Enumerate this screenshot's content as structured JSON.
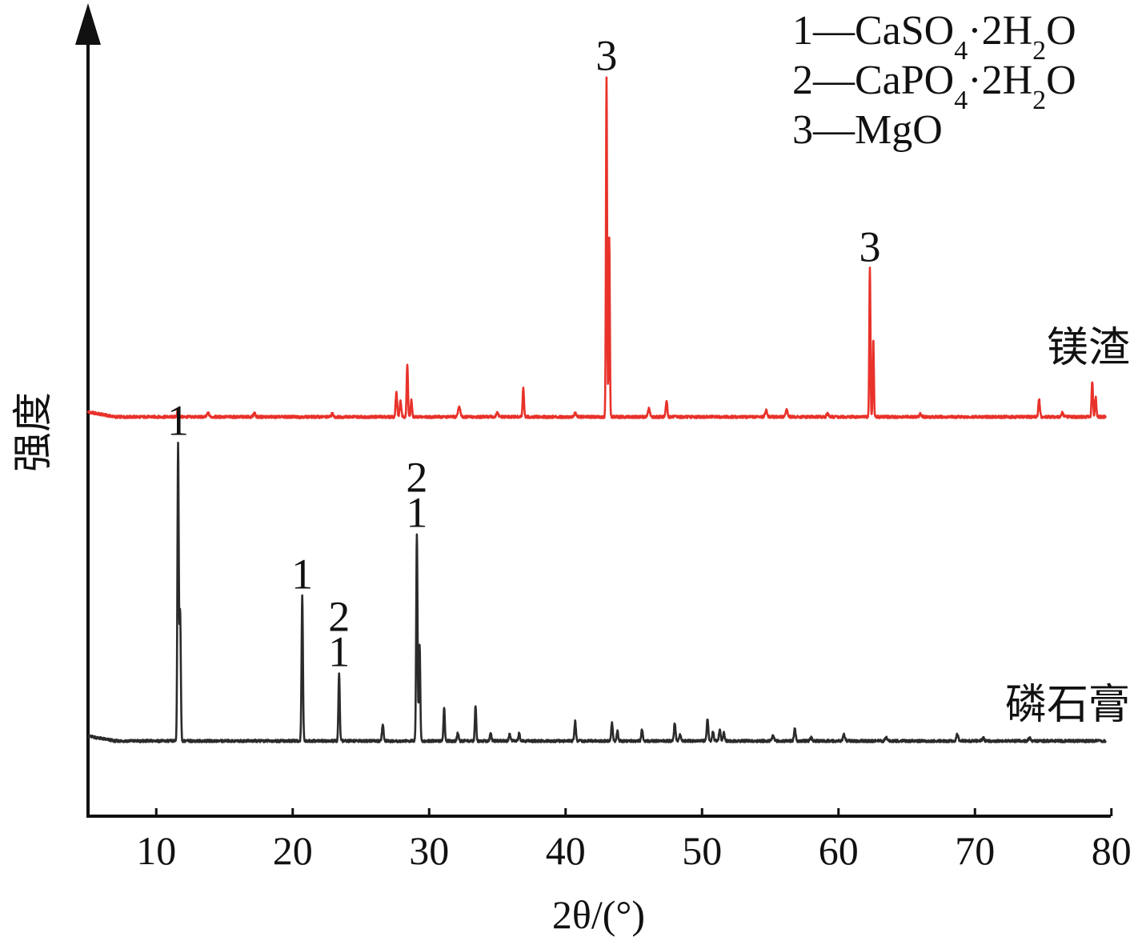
{
  "chart_data": {
    "type": "line",
    "xlabel": "2θ/(°)",
    "ylabel": "强度",
    "xlim": [
      5,
      80
    ],
    "x_ticks": [
      "10",
      "20",
      "30",
      "40",
      "50",
      "60",
      "70",
      "80"
    ],
    "grid": false,
    "y_ticks_shown": false,
    "legend": {
      "placement": "top-right",
      "entries": [
        {
          "marker": "1",
          "formula": "CaSO4·2H2O"
        },
        {
          "marker": "2",
          "formula": "CaPO4·2H2O"
        },
        {
          "marker": "3",
          "formula": "MgO"
        }
      ]
    },
    "series": [
      {
        "name": "镁渣",
        "color": "#e8322a",
        "baseline": 1.0,
        "peaks": [
          {
            "x": 11.6,
            "h": 0.02,
            "w": 0.1
          },
          {
            "x": 13.8,
            "h": 0.012,
            "w": 0.1
          },
          {
            "x": 17.2,
            "h": 0.012,
            "w": 0.1
          },
          {
            "x": 22.9,
            "h": 0.01,
            "w": 0.1
          },
          {
            "x": 27.6,
            "h": 0.075,
            "w": 0.08
          },
          {
            "x": 27.9,
            "h": 0.05,
            "w": 0.08
          },
          {
            "x": 28.4,
            "h": 0.16,
            "w": 0.07
          },
          {
            "x": 28.7,
            "h": 0.05,
            "w": 0.07
          },
          {
            "x": 32.2,
            "h": 0.03,
            "w": 0.12
          },
          {
            "x": 35.0,
            "h": 0.012,
            "w": 0.1
          },
          {
            "x": 36.9,
            "h": 0.088,
            "w": 0.07
          },
          {
            "x": 40.7,
            "h": 0.012,
            "w": 0.1
          },
          {
            "x": 43.0,
            "h": 1.05,
            "w": 0.06
          },
          {
            "x": 43.2,
            "h": 0.55,
            "w": 0.06
          },
          {
            "x": 46.1,
            "h": 0.025,
            "w": 0.1
          },
          {
            "x": 47.4,
            "h": 0.05,
            "w": 0.08
          },
          {
            "x": 54.7,
            "h": 0.022,
            "w": 0.1
          },
          {
            "x": 56.2,
            "h": 0.022,
            "w": 0.1
          },
          {
            "x": 59.2,
            "h": 0.01,
            "w": 0.1
          },
          {
            "x": 62.3,
            "h": 0.46,
            "w": 0.06
          },
          {
            "x": 62.55,
            "h": 0.24,
            "w": 0.06
          },
          {
            "x": 66.0,
            "h": 0.01,
            "w": 0.1
          },
          {
            "x": 74.7,
            "h": 0.055,
            "w": 0.08
          },
          {
            "x": 76.4,
            "h": 0.012,
            "w": 0.1
          },
          {
            "x": 78.6,
            "h": 0.11,
            "w": 0.07
          },
          {
            "x": 78.85,
            "h": 0.06,
            "w": 0.07
          }
        ]
      },
      {
        "name": "磷石膏",
        "color": "#2b2b2b",
        "baseline": 0.0,
        "peaks": [
          {
            "x": 11.6,
            "h": 0.92,
            "w": 0.07
          },
          {
            "x": 11.75,
            "h": 0.4,
            "w": 0.07
          },
          {
            "x": 20.7,
            "h": 0.45,
            "w": 0.07
          },
          {
            "x": 23.4,
            "h": 0.21,
            "w": 0.07
          },
          {
            "x": 26.6,
            "h": 0.05,
            "w": 0.08
          },
          {
            "x": 29.1,
            "h": 0.64,
            "w": 0.07
          },
          {
            "x": 29.3,
            "h": 0.3,
            "w": 0.07
          },
          {
            "x": 31.1,
            "h": 0.1,
            "w": 0.07
          },
          {
            "x": 32.1,
            "h": 0.025,
            "w": 0.08
          },
          {
            "x": 33.4,
            "h": 0.11,
            "w": 0.07
          },
          {
            "x": 34.5,
            "h": 0.025,
            "w": 0.08
          },
          {
            "x": 35.9,
            "h": 0.02,
            "w": 0.08
          },
          {
            "x": 36.6,
            "h": 0.025,
            "w": 0.08
          },
          {
            "x": 40.7,
            "h": 0.06,
            "w": 0.08
          },
          {
            "x": 43.4,
            "h": 0.055,
            "w": 0.08
          },
          {
            "x": 43.8,
            "h": 0.03,
            "w": 0.08
          },
          {
            "x": 45.6,
            "h": 0.035,
            "w": 0.08
          },
          {
            "x": 48.0,
            "h": 0.055,
            "w": 0.08
          },
          {
            "x": 48.4,
            "h": 0.02,
            "w": 0.08
          },
          {
            "x": 50.4,
            "h": 0.07,
            "w": 0.08
          },
          {
            "x": 50.8,
            "h": 0.03,
            "w": 0.08
          },
          {
            "x": 51.3,
            "h": 0.035,
            "w": 0.08
          },
          {
            "x": 51.6,
            "h": 0.025,
            "w": 0.08
          },
          {
            "x": 55.2,
            "h": 0.015,
            "w": 0.1
          },
          {
            "x": 56.8,
            "h": 0.04,
            "w": 0.08
          },
          {
            "x": 58.0,
            "h": 0.01,
            "w": 0.1
          },
          {
            "x": 60.4,
            "h": 0.02,
            "w": 0.1
          },
          {
            "x": 63.5,
            "h": 0.01,
            "w": 0.1
          },
          {
            "x": 68.7,
            "h": 0.02,
            "w": 0.1
          },
          {
            "x": 70.6,
            "h": 0.01,
            "w": 0.1
          },
          {
            "x": 74.0,
            "h": 0.01,
            "w": 0.1
          }
        ]
      }
    ],
    "peak_annotations": [
      {
        "text": "3",
        "x": 43.0,
        "series": 0
      },
      {
        "text": "3",
        "x": 62.3,
        "series": 0
      },
      {
        "text": "1",
        "x": 11.6,
        "series": 1
      },
      {
        "text": "1",
        "x": 20.7,
        "series": 1
      },
      {
        "text": "2\n1",
        "x": 23.4,
        "series": 1
      },
      {
        "text": "2\n1",
        "x": 29.1,
        "series": 1
      }
    ]
  }
}
